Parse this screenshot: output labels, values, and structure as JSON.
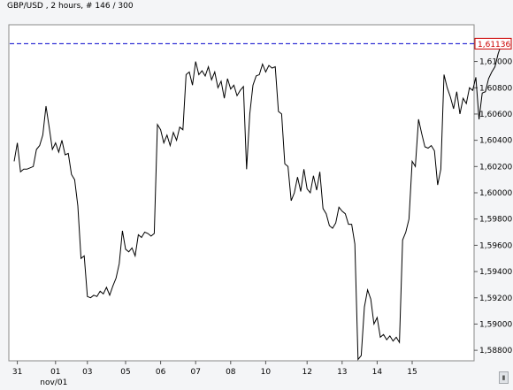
{
  "chart_data": {
    "type": "line",
    "title": "GBP/USD , 2 hours, # 146 / 300",
    "xlabel": "",
    "ylabel": "",
    "ylim": [
      1.5872,
      1.6128
    ],
    "grid": false,
    "current_price": 1.61136,
    "current_price_label": "1,61136",
    "y_ticks": [
      {
        "value": 1.61,
        "label": "1,61000"
      },
      {
        "value": 1.608,
        "label": "1,60800"
      },
      {
        "value": 1.606,
        "label": "1,60600"
      },
      {
        "value": 1.604,
        "label": "1,60400"
      },
      {
        "value": 1.602,
        "label": "1,60200"
      },
      {
        "value": 1.6,
        "label": "1,60000"
      },
      {
        "value": 1.598,
        "label": "1,59800"
      },
      {
        "value": 1.596,
        "label": "1,59600"
      },
      {
        "value": 1.594,
        "label": "1,59400"
      },
      {
        "value": 1.592,
        "label": "1,59200"
      },
      {
        "value": 1.59,
        "label": "1,59000"
      },
      {
        "value": 1.588,
        "label": "1,58800"
      }
    ],
    "x_ticks": [
      {
        "index": 1,
        "label": "31"
      },
      {
        "index": 13,
        "label": "01",
        "sublabel": "nov/01"
      },
      {
        "index": 23,
        "label": "03"
      },
      {
        "index": 35,
        "label": "05"
      },
      {
        "index": 46,
        "label": "06"
      },
      {
        "index": 57,
        "label": "07"
      },
      {
        "index": 68,
        "label": "08"
      },
      {
        "index": 79,
        "label": "10"
      },
      {
        "index": 92,
        "label": "12"
      },
      {
        "index": 103,
        "label": "13"
      },
      {
        "index": 114,
        "label": "14"
      },
      {
        "index": 125,
        "label": "15"
      }
    ],
    "series": [
      {
        "values": [
          1.6024,
          1.6038,
          1.6016,
          1.6018,
          1.6018,
          1.6019,
          1.602,
          1.6033,
          1.6036,
          1.6044,
          1.6066,
          1.605,
          1.6033,
          1.6038,
          1.6031,
          1.604,
          1.6029,
          1.603,
          1.6014,
          1.601,
          1.599,
          1.595,
          1.5952,
          1.5921,
          1.592,
          1.5922,
          1.5921,
          1.5925,
          1.5923,
          1.5928,
          1.5922,
          1.5929,
          1.5935,
          1.5946,
          1.5971,
          1.5957,
          1.5955,
          1.5958,
          1.5952,
          1.5968,
          1.5966,
          1.597,
          1.5969,
          1.5967,
          1.5969,
          1.6052,
          1.6048,
          1.6038,
          1.6044,
          1.6036,
          1.6046,
          1.604,
          1.605,
          1.6048,
          1.609,
          1.6092,
          1.6082,
          1.61,
          1.609,
          1.6093,
          1.6089,
          1.6096,
          1.6086,
          1.6092,
          1.608,
          1.6085,
          1.6072,
          1.6087,
          1.6079,
          1.6082,
          1.6074,
          1.6078,
          1.6081,
          1.6018,
          1.606,
          1.6082,
          1.6089,
          1.609,
          1.6098,
          1.6092,
          1.6097,
          1.6095,
          1.6096,
          1.6062,
          1.606,
          1.6022,
          1.602,
          1.5994,
          1.6,
          1.6012,
          1.6001,
          1.6018,
          1.6003,
          1.6,
          1.6013,
          1.6002,
          1.6016,
          1.5988,
          1.5984,
          1.5975,
          1.5973,
          1.5977,
          1.5989,
          1.5986,
          1.5984,
          1.5976,
          1.5976,
          1.5961,
          1.5873,
          1.5876,
          1.5913,
          1.5926,
          1.5919,
          1.59,
          1.5905,
          1.589,
          1.5892,
          1.5888,
          1.5891,
          1.5887,
          1.589,
          1.5886,
          1.5964,
          1.597,
          1.598,
          1.6024,
          1.602,
          1.6056,
          1.6045,
          1.6035,
          1.6034,
          1.6036,
          1.6032,
          1.6006,
          1.6018,
          1.609,
          1.608,
          1.6073,
          1.6064,
          1.6077,
          1.606,
          1.6072,
          1.6068,
          1.608,
          1.6078,
          1.6088,
          1.6056,
          1.6076,
          1.6077,
          1.6087,
          1.6092,
          1.6096,
          1.6106,
          1.6113
        ]
      }
    ]
  }
}
